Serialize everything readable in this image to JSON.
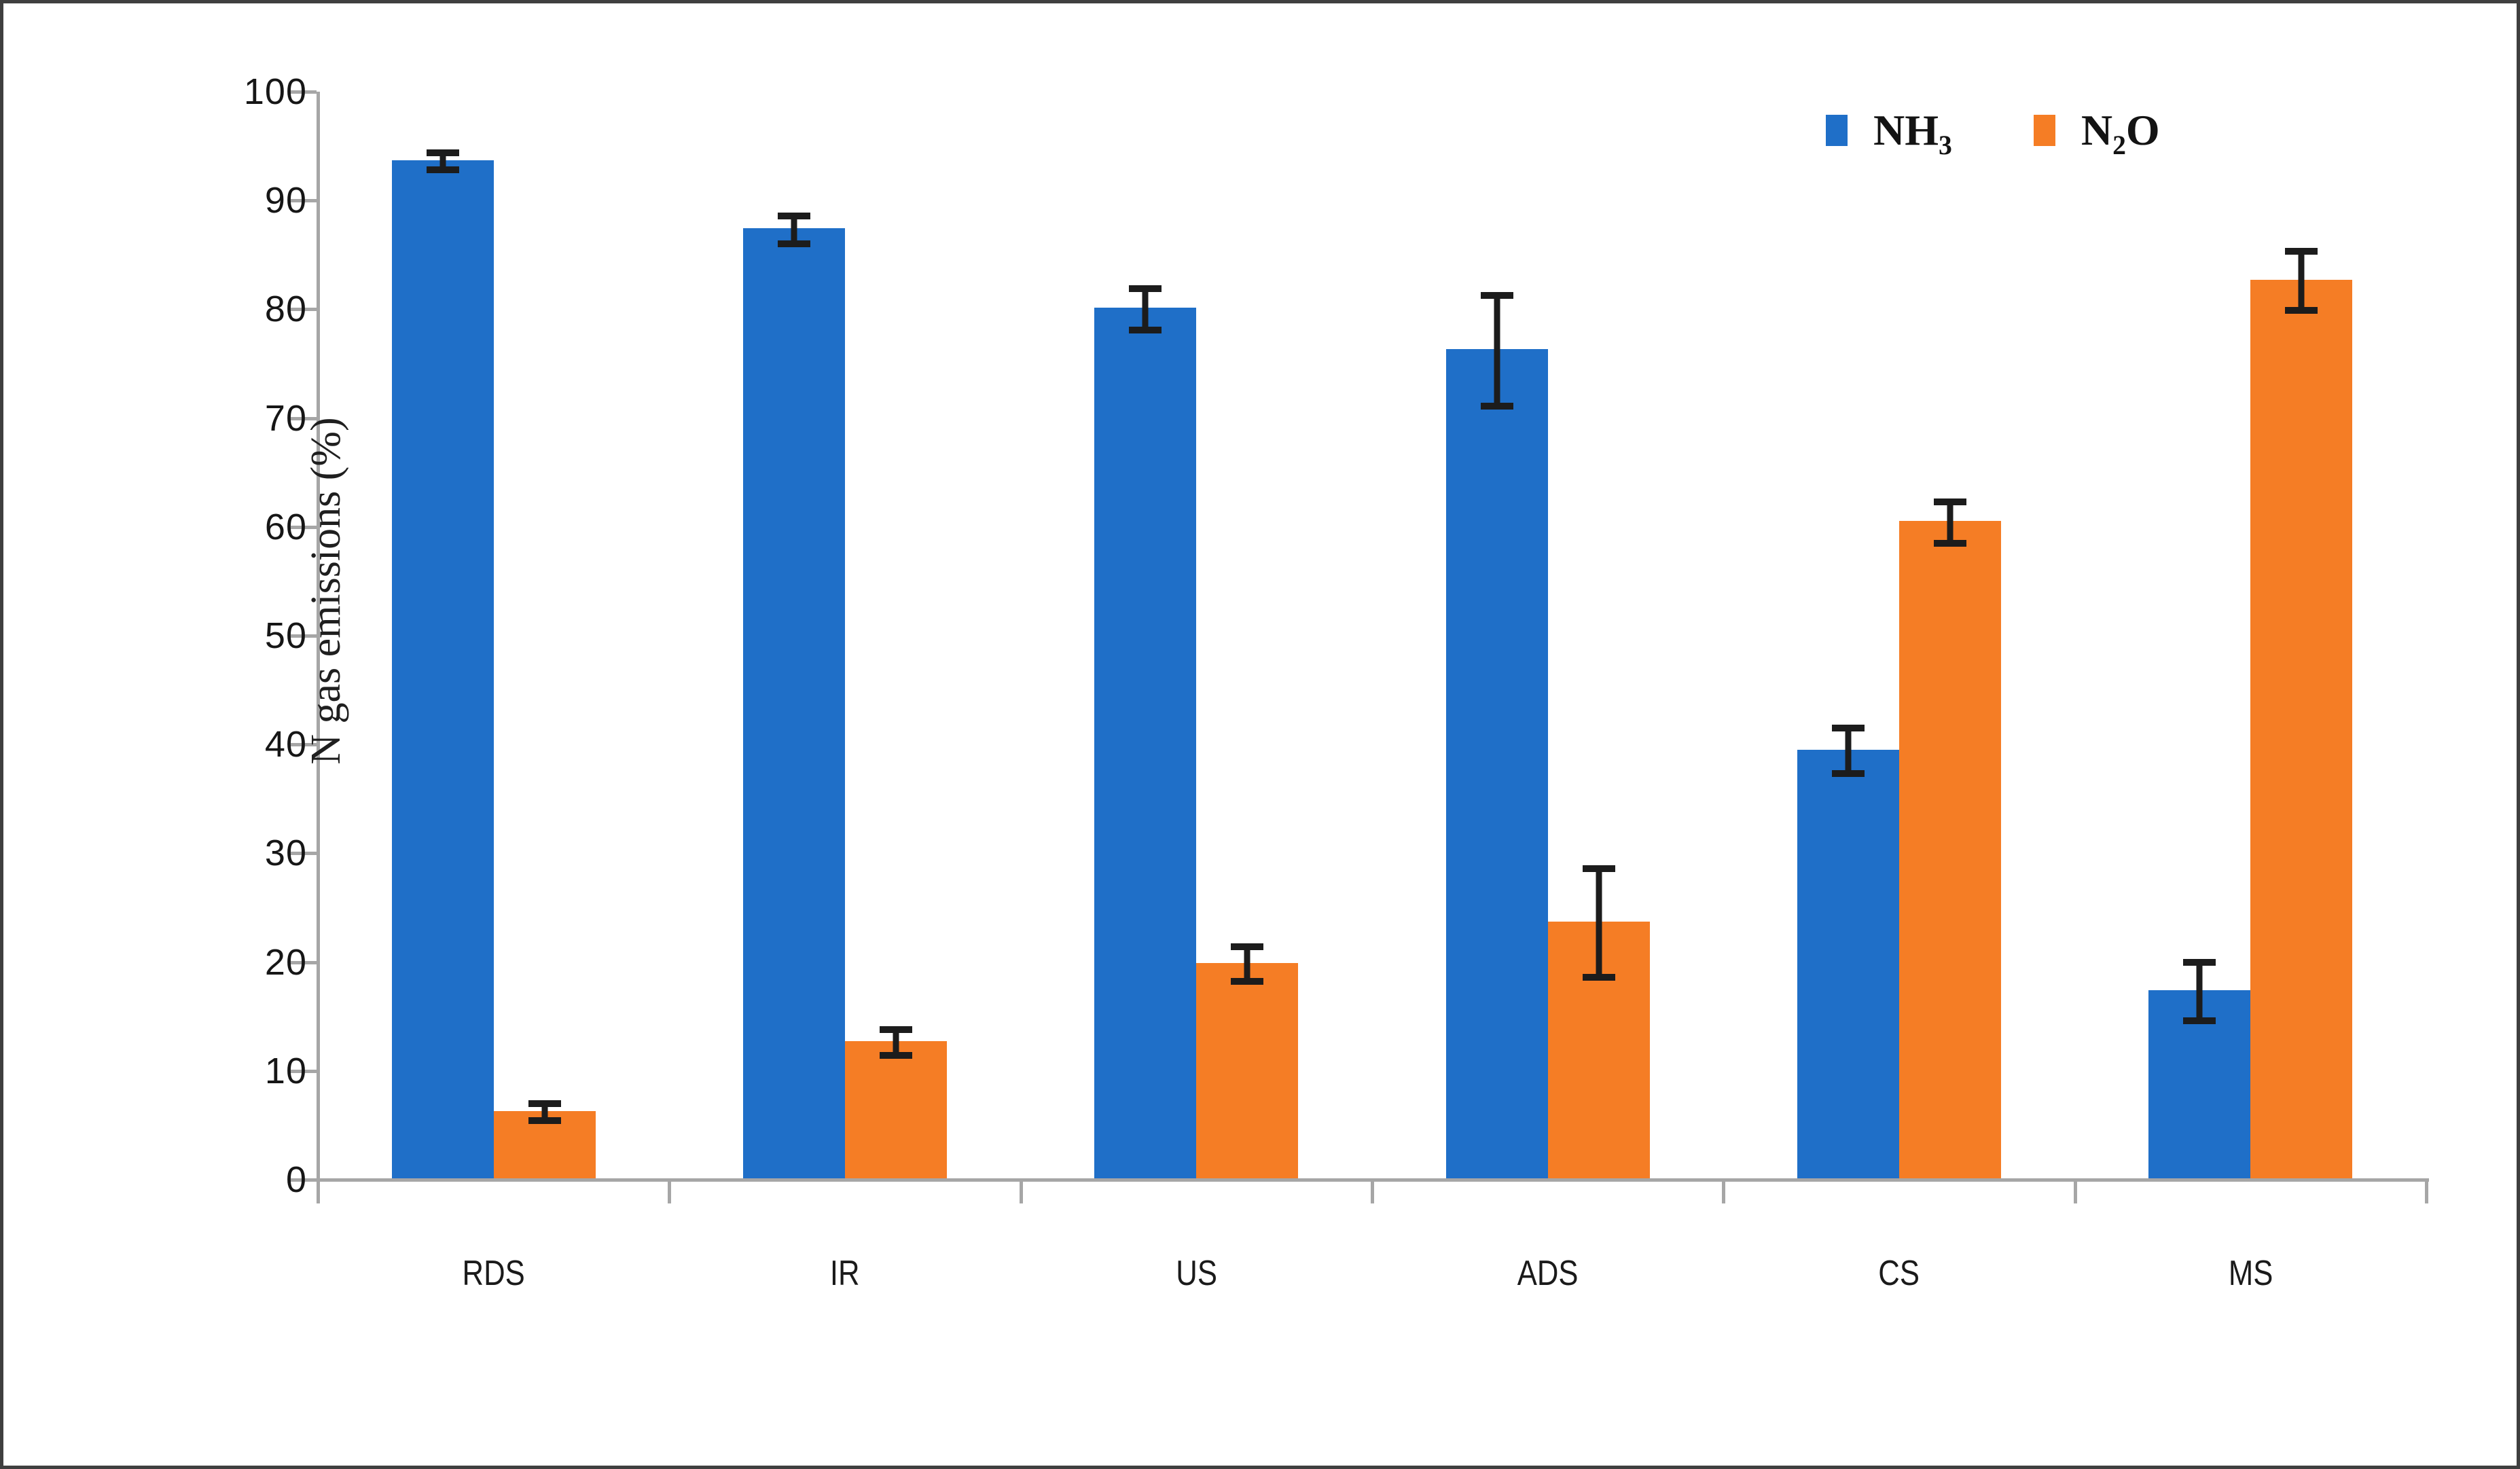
{
  "figure": {
    "background": "#ffffff",
    "border_color": "#3f3f3f",
    "axis_color": "#a6a6a6",
    "error_bar_color": "#1c1c1c"
  },
  "legend": {
    "items": [
      {
        "pre": "NH",
        "sub": "3",
        "post": "",
        "color": "#1f6fc8"
      },
      {
        "pre": "N",
        "sub": "2",
        "post": "O",
        "color": "#f57d25"
      }
    ]
  },
  "chart_data": {
    "type": "bar",
    "title": "",
    "xlabel": "",
    "ylabel": "N gas emissions (%)",
    "ylim": [
      0,
      100
    ],
    "yticks": [
      0,
      10,
      20,
      30,
      40,
      50,
      60,
      70,
      80,
      90,
      100
    ],
    "grid": false,
    "legend_position": "top-right-inside",
    "error_bars": true,
    "categories": [
      "RDS",
      "IR",
      "US",
      "ADS",
      "CS",
      "MS"
    ],
    "series": [
      {
        "name": "NH3",
        "color": "#1f6fc8",
        "values": [
          93.6,
          87.3,
          80.0,
          76.2,
          39.4,
          17.3
        ],
        "errors": [
          0.8,
          1.3,
          1.9,
          5.1,
          2.1,
          2.7
        ]
      },
      {
        "name": "N2O",
        "color": "#f57d25",
        "values": [
          6.2,
          12.6,
          19.8,
          23.6,
          60.4,
          82.6
        ],
        "errors": [
          0.8,
          1.2,
          1.6,
          5.0,
          1.9,
          2.7
        ]
      }
    ]
  }
}
